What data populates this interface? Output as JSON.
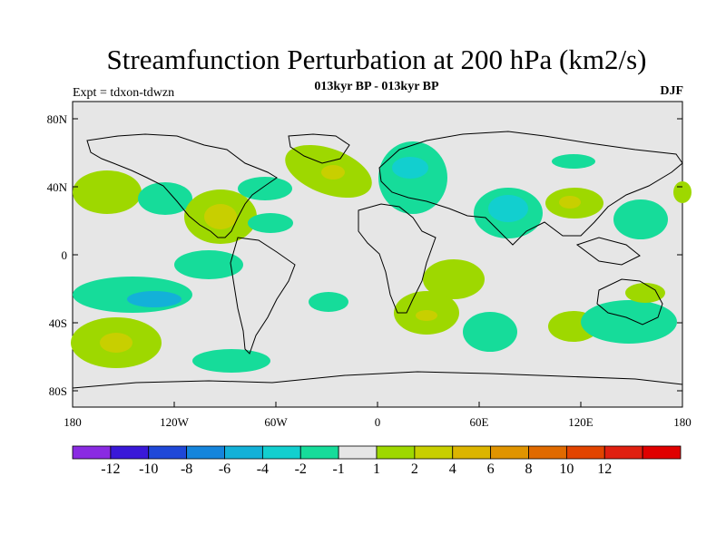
{
  "title": "Streamfunction Perturbation at 200 hPa (km2/s)",
  "subtitle": "013kyr BP - 013kyr BP",
  "left_label": "Expt = tdxon-tdwzn",
  "right_label": "DJF",
  "lat_labels": [
    "80N",
    "40N",
    "0",
    "40S",
    "80S"
  ],
  "lon_labels": [
    "180",
    "120W",
    "60W",
    "0",
    "60E",
    "120E",
    "180"
  ],
  "colorbar": {
    "colors": [
      "#8a2be2",
      "#3a18d8",
      "#1f48d8",
      "#1585dc",
      "#13b1d8",
      "#12cfcf",
      "#16dc9a",
      "#e6e6e6",
      "#9ed800",
      "#c8cf00",
      "#dcb500",
      "#e09400",
      "#e06a00",
      "#e24400",
      "#e02010",
      "#e00000"
    ],
    "labels": [
      "-12",
      "-10",
      "-8",
      "-6",
      "-4",
      "-2",
      "-1",
      "1",
      "2",
      "4",
      "6",
      "8",
      "10",
      "12"
    ]
  },
  "map_background": "#e6e6e6"
}
